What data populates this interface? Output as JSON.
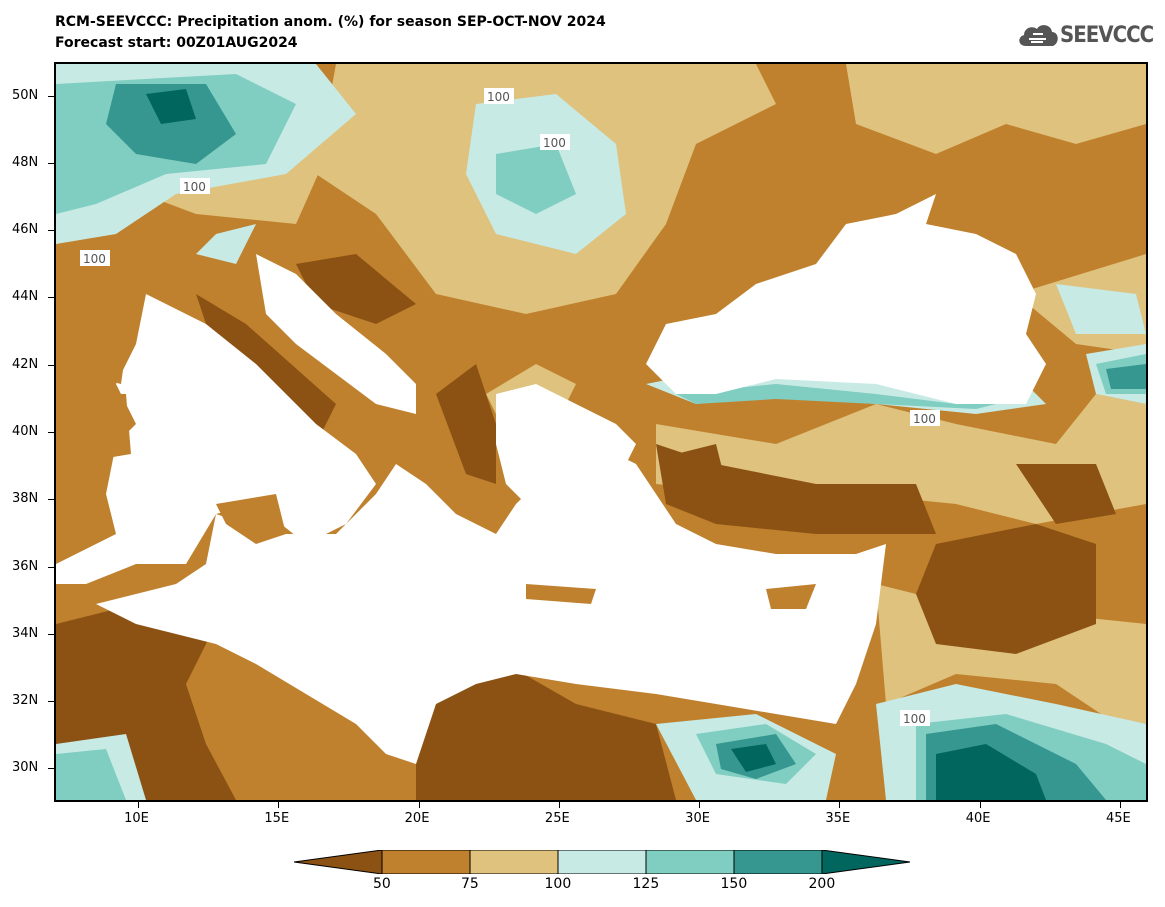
{
  "header": {
    "title_line1": "RCM-SEEVCCC: Precipitation anom. (%) for season SEP-OCT-NOV 2024",
    "title_line2": "Forecast start: 00Z01AUG2024"
  },
  "logo": {
    "text": "SEEVCCC",
    "icon": "cloud-logo-icon"
  },
  "map": {
    "lon_range": [
      7,
      46
    ],
    "lat_range": [
      29,
      51
    ],
    "lat_ticks": [
      "50N",
      "48N",
      "46N",
      "44N",
      "42N",
      "40N",
      "38N",
      "36N",
      "34N",
      "32N",
      "30N"
    ],
    "lon_ticks": [
      "10E",
      "15E",
      "20E",
      "25E",
      "30E",
      "35E",
      "40E",
      "45E"
    ],
    "contour_label": "100",
    "colors": {
      "lt50": "#8c5213",
      "50_75": "#bf812d",
      "75_100": "#dfc27d",
      "100_125": "#c7eae5",
      "125_150": "#80cdc1",
      "150_200": "#35978f",
      "gt200": "#01665e",
      "sea": "#ffffff"
    }
  },
  "colorbar": {
    "labels": [
      "50",
      "75",
      "100",
      "125",
      "150",
      "200"
    ],
    "colors": [
      "#8c5213",
      "#bf812d",
      "#dfc27d",
      "#c7eae5",
      "#80cdc1",
      "#35978f",
      "#01665e"
    ]
  }
}
